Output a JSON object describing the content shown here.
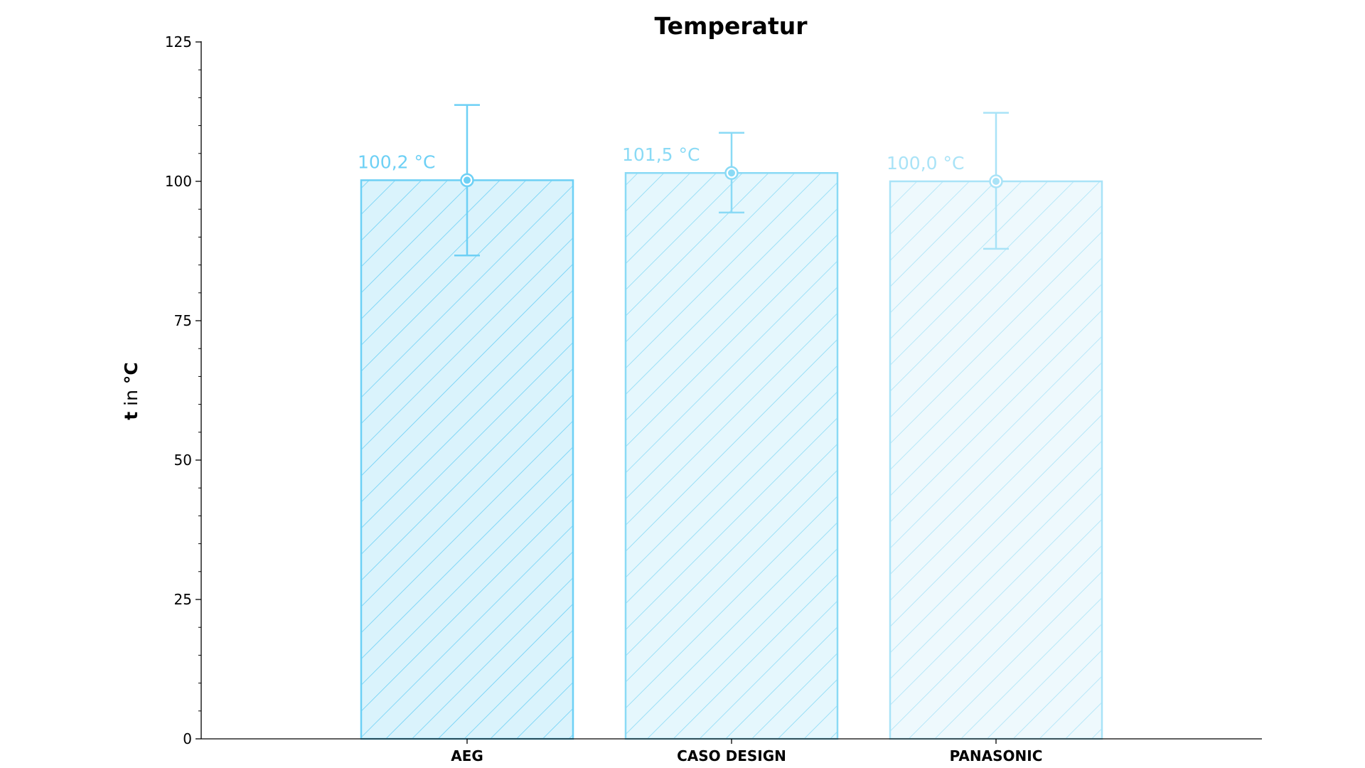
{
  "chart_data": {
    "type": "bar",
    "title": "Temperatur",
    "ylabel_var": "t",
    "ylabel_mid": " in ",
    "ylabel_unit": "°C",
    "xlabel": "",
    "categories": [
      "AEG",
      "CASO DESIGN",
      "PANASONIC"
    ],
    "values": [
      100.2,
      101.5,
      100.0
    ],
    "error_low": [
      86.7,
      94.4,
      87.9
    ],
    "error_high": [
      113.7,
      108.7,
      112.3
    ],
    "data_labels": [
      "100,2 °C",
      "101,5 °C",
      "100,0 °C"
    ],
    "colors": [
      "#6dd0f5",
      "#8adaf5",
      "#a9e3f7"
    ],
    "fill_opacity": [
      0.25,
      0.22,
      0.2
    ],
    "ylim": [
      0,
      125
    ],
    "yticks": [
      0,
      25,
      50,
      75,
      100,
      125
    ],
    "ytick_labels": [
      "0",
      "25",
      "50",
      "75",
      "100",
      "125"
    ],
    "minor_tick_step": 5,
    "hatch": "diagonal",
    "grid": false,
    "legend": "none"
  }
}
